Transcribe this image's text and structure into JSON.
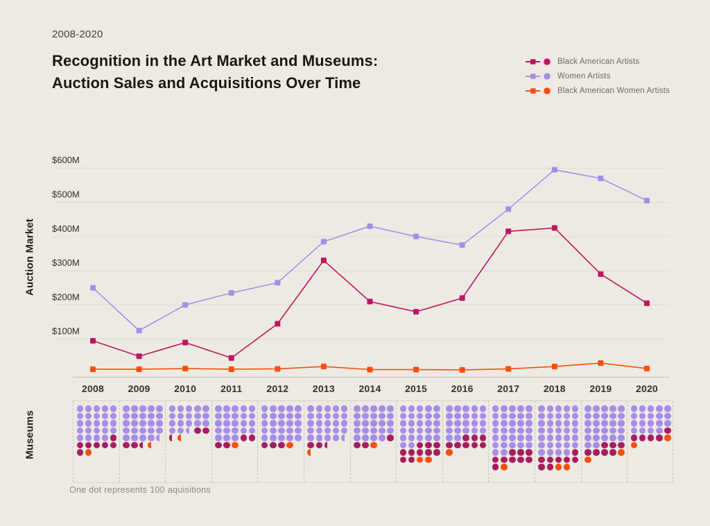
{
  "header": {
    "date_range": "2008-2020",
    "title_line1": "Recognition in the Art Market and Museums:",
    "title_line2": "Auction Sales and Acquisitions Over Time"
  },
  "legend": {
    "items": [
      {
        "label": "Black American Artists",
        "color": "#BE1560"
      },
      {
        "label": "Women Artists",
        "color": "#A88DE8"
      },
      {
        "label": "Black American Women Artists",
        "color": "#F84E0D"
      }
    ]
  },
  "labels": {
    "auction_axis": "Auction Market",
    "museums_axis": "Museums",
    "dot_note": "One dot represents 100 aquisitions"
  },
  "chart_data": [
    {
      "type": "line",
      "title": "Auction Market",
      "x": [
        "2008",
        "2009",
        "2010",
        "2011",
        "2012",
        "2013",
        "2014",
        "2015",
        "2016",
        "2017",
        "2018",
        "2019",
        "2020"
      ],
      "y_unit": "millions USD",
      "ylim": [
        0,
        620
      ],
      "yticks": [
        100,
        200,
        300,
        400,
        500,
        600
      ],
      "ytick_labels": [
        "$100M",
        "$200M",
        "$300M",
        "$400M",
        "$500M",
        "$600M"
      ],
      "grid": true,
      "legend_position": "top-right",
      "series": [
        {
          "name": "Women Artists",
          "color": "#A88DE8",
          "values": [
            250,
            125,
            200,
            235,
            265,
            385,
            430,
            400,
            375,
            480,
            595,
            570,
            505
          ]
        },
        {
          "name": "Black American Artists",
          "color": "#BE1560",
          "values": [
            95,
            50,
            90,
            45,
            145,
            330,
            210,
            180,
            220,
            415,
            425,
            290,
            205
          ]
        },
        {
          "name": "Black American Women Artists",
          "color": "#F84E0D",
          "values": [
            12,
            12,
            14,
            12,
            13,
            20,
            11,
            11,
            10,
            13,
            20,
            30,
            14
          ]
        }
      ]
    },
    {
      "type": "dot-matrix",
      "title": "Museums",
      "unit_note": "One dot represents 100 aquisitions",
      "dots_per_row": 5,
      "dot_colors": {
        "W": "#A88DE8",
        "B": "#A81E5C",
        "O": "#F7500F"
      },
      "series_key": {
        "W": "Women Artists",
        "B": "Black American Artists",
        "O": "Black American Women Artists"
      },
      "years": [
        {
          "year": "2008",
          "women_artists": 24,
          "black_american_artists": 7,
          "black_american_women_artists": 1,
          "rows": [
            "WWWWW",
            "WWWWW",
            "WWWWW",
            "WWWWW",
            "WWWWB",
            "BBBBB",
            "BO"
          ]
        },
        {
          "year": "2009",
          "women_artists": 24.5,
          "black_american_artists": 2.5,
          "black_american_women_artists": 0.5,
          "rows": [
            "WWWWW",
            "WWWWW",
            "WWWWW",
            "WWWWW",
            "WWWWw",
            "BBbo"
          ]
        },
        {
          "year": "2010",
          "women_artists": 17.5,
          "black_american_artists": 2.5,
          "black_american_women_artists": 0.5,
          "rows": [
            "WWWWW",
            "WWWWW",
            "WWWWW",
            "WWwBB",
            "bo"
          ]
        },
        {
          "year": "2011",
          "women_artists": 23,
          "black_american_artists": 4,
          "black_american_women_artists": 1,
          "rows": [
            "WWWWW",
            "WWWWW",
            "WWWWW",
            "WWWWW",
            "WWWBB",
            "BBO"
          ]
        },
        {
          "year": "2012",
          "women_artists": 25,
          "black_american_artists": 3,
          "black_american_women_artists": 1,
          "rows": [
            "WWWWW",
            "WWWWW",
            "WWWWW",
            "WWWWW",
            "WWWWW",
            "BBBO"
          ]
        },
        {
          "year": "2013",
          "women_artists": 24.5,
          "black_american_artists": 2.5,
          "black_american_women_artists": 0.5,
          "rows": [
            "WWWWW",
            "WWWWW",
            "WWWWW",
            "WWWWW",
            "WWWWw",
            "BBb",
            "o"
          ]
        },
        {
          "year": "2014",
          "women_artists": 24,
          "black_american_artists": 3,
          "black_american_women_artists": 1,
          "rows": [
            "WWWWW",
            "WWWWW",
            "WWWWW",
            "WWWWW",
            "WWWWB",
            "BBO"
          ]
        },
        {
          "year": "2015",
          "women_artists": 27,
          "black_american_artists": 10,
          "black_american_women_artists": 2,
          "rows": [
            "WWWWW",
            "WWWWW",
            "WWWWW",
            "WWWWW",
            "WWWWW",
            "WWBBB",
            "BBBBB",
            "BBOO"
          ]
        },
        {
          "year": "2016",
          "women_artists": 22,
          "black_american_artists": 8,
          "black_american_women_artists": 1,
          "rows": [
            "WWWWW",
            "WWWWW",
            "WWWWW",
            "WWWWW",
            "WWBBB",
            "BBBBB",
            "O"
          ]
        },
        {
          "year": "2017",
          "women_artists": 32,
          "black_american_artists": 9,
          "black_american_women_artists": 1,
          "rows": [
            "WWWWW",
            "WWWWW",
            "WWWWW",
            "WWWWW",
            "WWWWW",
            "WWWWW",
            "WWBBB",
            "BBBBB",
            "BO"
          ]
        },
        {
          "year": "2018",
          "women_artists": 34,
          "black_american_artists": 8,
          "black_american_women_artists": 2,
          "rows": [
            "WWWWW",
            "WWWWW",
            "WWWWW",
            "WWWWW",
            "WWWWW",
            "WWWWW",
            "WWWWB",
            "BBBBB",
            "BBOO"
          ]
        },
        {
          "year": "2019",
          "women_artists": 27,
          "black_american_artists": 7,
          "black_american_women_artists": 2,
          "rows": [
            "WWWWW",
            "WWWWW",
            "WWWWW",
            "WWWWW",
            "WWWWW",
            "WWBBB",
            "BBBBO",
            "O"
          ]
        },
        {
          "year": "2020",
          "women_artists": 19,
          "black_american_artists": 5,
          "black_american_women_artists": 2,
          "rows": [
            "WWWWW",
            "WWWWW",
            "WWWWW",
            "WWWWB",
            "BBBBO",
            "O"
          ]
        }
      ]
    }
  ]
}
